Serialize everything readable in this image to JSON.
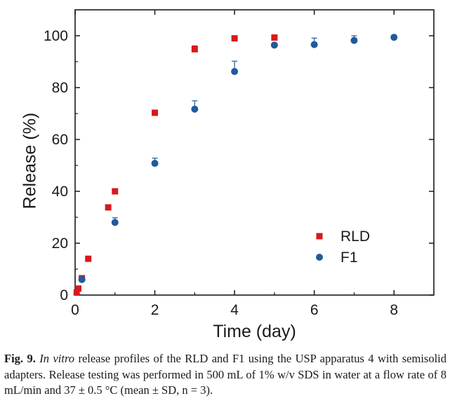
{
  "chart_data": {
    "type": "scatter",
    "xlabel": "Time (day)",
    "ylabel": "Release (%)",
    "xlim": [
      0,
      9
    ],
    "ylim": [
      0,
      110
    ],
    "xticks": [
      0,
      2,
      4,
      6,
      8
    ],
    "yticks": [
      0,
      20,
      40,
      60,
      80,
      100
    ],
    "xtick_labels": [
      "0",
      "2",
      "4",
      "6",
      "8"
    ],
    "ytick_labels": [
      "0",
      "20",
      "40",
      "60",
      "80",
      "100"
    ],
    "grid": false,
    "legend_position": "lower-right",
    "series": [
      {
        "name": "RLD",
        "marker": "square",
        "color": "#d7191c",
        "points": [
          {
            "x": 0.04,
            "y": 1.0,
            "err": 0
          },
          {
            "x": 0.08,
            "y": 2.5,
            "err": 0
          },
          {
            "x": 0.17,
            "y": 6.5,
            "err": 0
          },
          {
            "x": 0.33,
            "y": 14.0,
            "err": 0
          },
          {
            "x": 0.83,
            "y": 33.8,
            "err": 0
          },
          {
            "x": 1.0,
            "y": 40.0,
            "err": 0
          },
          {
            "x": 2.0,
            "y": 70.3,
            "err": 0.5
          },
          {
            "x": 3.0,
            "y": 94.8,
            "err": 1.3
          },
          {
            "x": 4.0,
            "y": 99.0,
            "err": 0
          },
          {
            "x": 5.0,
            "y": 99.3,
            "err": 0
          }
        ]
      },
      {
        "name": "F1",
        "marker": "circle",
        "color": "#1f5b9a",
        "points": [
          {
            "x": 0.17,
            "y": 6.0,
            "err": 0
          },
          {
            "x": 1.0,
            "y": 28.0,
            "err": 1.8
          },
          {
            "x": 2.0,
            "y": 50.8,
            "err": 2.0
          },
          {
            "x": 3.0,
            "y": 71.7,
            "err": 3.2
          },
          {
            "x": 4.0,
            "y": 86.2,
            "err": 4.0
          },
          {
            "x": 5.0,
            "y": 96.4,
            "err": 0
          },
          {
            "x": 6.0,
            "y": 96.6,
            "err": 2.5
          },
          {
            "x": 7.0,
            "y": 98.2,
            "err": 1.8
          },
          {
            "x": 8.0,
            "y": 99.4,
            "err": 0
          }
        ]
      }
    ]
  },
  "caption": {
    "fig_label": "Fig. 9.",
    "italic_text": "In vitro",
    "text": " release profiles of the RLD and F1 using the USP apparatus 4 with semisolid adapters. Release testing was performed in 500 mL of 1% w/v SDS in water at a flow rate of 8 mL/min and 37 ± 0.5 °C (mean ± SD, n = 3)."
  }
}
